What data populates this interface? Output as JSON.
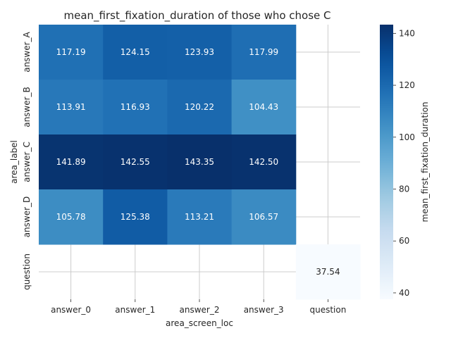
{
  "chart_data": {
    "type": "heatmap",
    "title": "mean_first_fixation_duration of those who chose C",
    "xlabel": "area_screen_loc",
    "ylabel": "area_label",
    "x_categories": [
      "answer_0",
      "answer_1",
      "answer_2",
      "answer_3",
      "question"
    ],
    "y_categories": [
      "answer_A",
      "answer_B",
      "answer_C",
      "answer_D",
      "question"
    ],
    "values": [
      [
        117.19,
        124.15,
        123.93,
        117.99,
        null
      ],
      [
        113.91,
        116.93,
        120.22,
        104.43,
        null
      ],
      [
        141.89,
        142.55,
        143.35,
        142.5,
        null
      ],
      [
        105.78,
        125.38,
        113.21,
        106.57,
        null
      ],
      [
        null,
        null,
        null,
        null,
        37.54
      ]
    ],
    "value_labels": [
      [
        "117.19",
        "124.15",
        "123.93",
        "117.99",
        ""
      ],
      [
        "113.91",
        "116.93",
        "120.22",
        "104.43",
        ""
      ],
      [
        "141.89",
        "142.55",
        "143.35",
        "142.50",
        ""
      ],
      [
        "105.78",
        "125.38",
        "113.21",
        "106.57",
        ""
      ],
      [
        "",
        "",
        "",
        "",
        "37.54"
      ]
    ],
    "colorbar": {
      "label": "mean_first_fixation_duration",
      "range": [
        37.54,
        143.35
      ],
      "ticks": [
        40,
        60,
        80,
        100,
        120,
        140
      ],
      "colormap": "Blues"
    },
    "grid": true
  }
}
